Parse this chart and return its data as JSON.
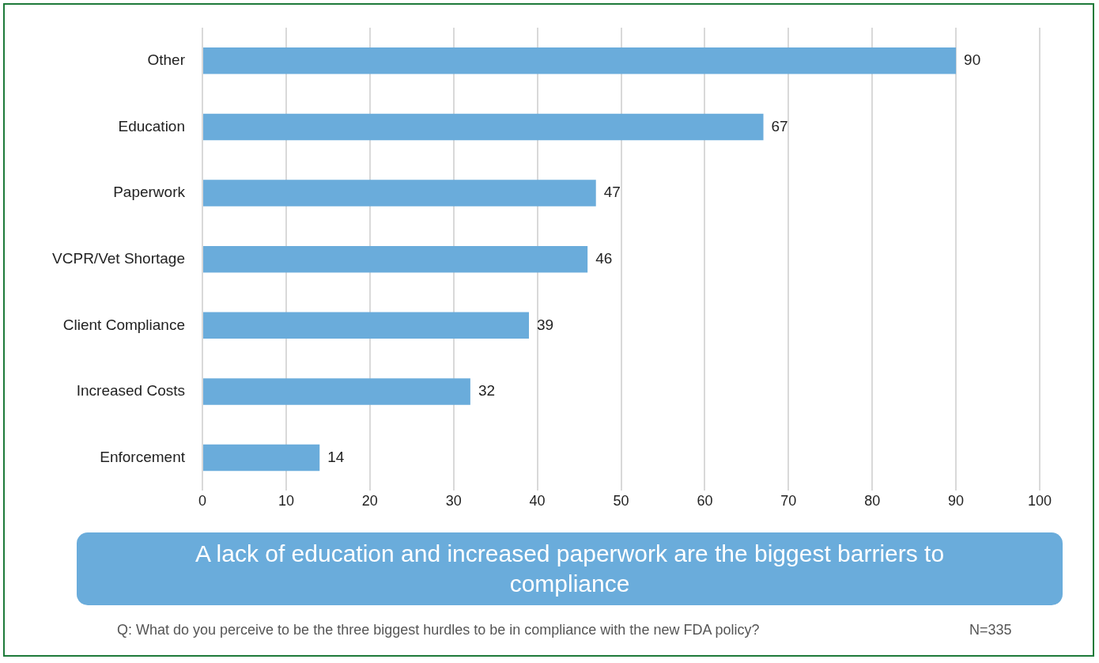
{
  "chart_data": {
    "type": "bar",
    "orientation": "horizontal",
    "categories": [
      "Other",
      "Education",
      "Paperwork",
      "VCPR/Vet Shortage",
      "Client Compliance",
      "Increased Costs",
      "Enforcement"
    ],
    "values": [
      90,
      67,
      47,
      46,
      39,
      32,
      14
    ],
    "color": "#6aacdb",
    "xlim": [
      0,
      100
    ],
    "xticks": [
      0,
      10,
      20,
      30,
      40,
      50,
      60,
      70,
      80,
      90,
      100
    ],
    "grid": "x",
    "legend": false,
    "data_labels": true,
    "annotations": [
      "A lack of education and increased paperwork are the biggest barriers to compliance",
      "Q: What do you perceive to be the three biggest hurdles to be in compliance with the new FDA policy?",
      "N=335"
    ]
  }
}
